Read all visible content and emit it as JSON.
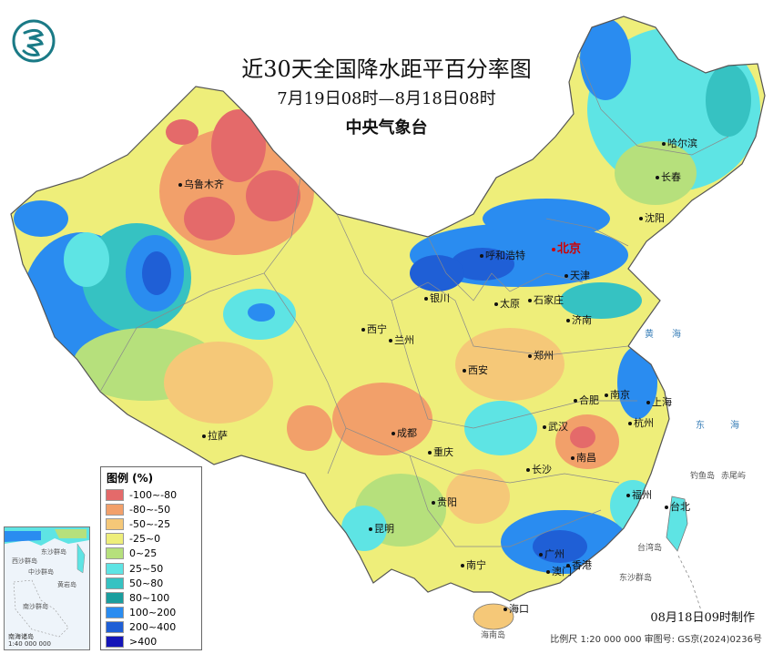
{
  "header": {
    "title": "近30天全国降水距平百分率图",
    "subtitle": "7月19日08时—8月18日08时",
    "agency": "中央气象台"
  },
  "legend": {
    "title": "图例 (%)",
    "items": [
      {
        "label": "-100~-80",
        "color": "#e46a6a"
      },
      {
        "label": "-80~-50",
        "color": "#f2a06a"
      },
      {
        "label": "-50~-25",
        "color": "#f5c878"
      },
      {
        "label": "-25~0",
        "color": "#eeee7a"
      },
      {
        "label": "0~25",
        "color": "#b6e07c"
      },
      {
        "label": "25~50",
        "color": "#5ee4e4"
      },
      {
        "label": "50~80",
        "color": "#36c2c2"
      },
      {
        "label": "80~100",
        "color": "#1a9e9e"
      },
      {
        "label": "100~200",
        "color": "#2a8cf0"
      },
      {
        "label": "200~400",
        "color": "#1f5fd6"
      },
      {
        "label": ">400",
        "color": "#1515b8"
      }
    ]
  },
  "cities": [
    {
      "key": "urumqi",
      "name": "乌鲁木齐"
    },
    {
      "key": "harbin",
      "name": "哈尔滨"
    },
    {
      "key": "changchun",
      "name": "长春"
    },
    {
      "key": "shenyang",
      "name": "沈阳"
    },
    {
      "key": "beijing",
      "name": "北京"
    },
    {
      "key": "hohhot",
      "name": "呼和浩特"
    },
    {
      "key": "tianjin",
      "name": "天津"
    },
    {
      "key": "yinchuan",
      "name": "银川"
    },
    {
      "key": "taiyuan",
      "name": "太原"
    },
    {
      "key": "shijiazhuang",
      "name": "石家庄"
    },
    {
      "key": "jinan",
      "name": "济南"
    },
    {
      "key": "xining",
      "name": "西宁"
    },
    {
      "key": "lanzhou",
      "name": "兰州"
    },
    {
      "key": "zhengzhou",
      "name": "郑州"
    },
    {
      "key": "xian",
      "name": "西安"
    },
    {
      "key": "hefei",
      "name": "合肥"
    },
    {
      "key": "nanjing",
      "name": "南京"
    },
    {
      "key": "shanghai",
      "name": "上海"
    },
    {
      "key": "hangzhou",
      "name": "杭州"
    },
    {
      "key": "lhasa",
      "name": "拉萨"
    },
    {
      "key": "chengdu",
      "name": "成都"
    },
    {
      "key": "wuhan",
      "name": "武汉"
    },
    {
      "key": "chongqing",
      "name": "重庆"
    },
    {
      "key": "nanchang",
      "name": "南昌"
    },
    {
      "key": "changsha",
      "name": "长沙"
    },
    {
      "key": "guiyang",
      "name": "贵阳"
    },
    {
      "key": "fuzhou",
      "name": "福州"
    },
    {
      "key": "taibei",
      "name": "台北"
    },
    {
      "key": "kunming",
      "name": "昆明"
    },
    {
      "key": "guangzhou",
      "name": "广州"
    },
    {
      "key": "nanning",
      "name": "南宁"
    },
    {
      "key": "hongkong",
      "name": "香港"
    },
    {
      "key": "macau",
      "name": "澳门"
    },
    {
      "key": "haikou",
      "name": "海口"
    }
  ],
  "seas": {
    "huanghai": "黄",
    "hai1": "海",
    "donghai": "东",
    "hai2": "海",
    "taiwan_island": "台湾岛",
    "dongsha": "东沙群岛",
    "hainan_island": "海南岛",
    "diaoyu": "钓鱼岛",
    "chiwei": "赤尾屿"
  },
  "inset": {
    "caption_title": "南海诸岛",
    "caption_scale": "1:40 000 000",
    "labels": [
      "东沙群岛",
      "西沙群岛",
      "中沙群岛",
      "南沙群岛",
      "黄岩岛"
    ]
  },
  "footer": {
    "made_time": "08月18日09时制作",
    "note": "比例尺 1:20 000 000 审图号: GS京(2024)0236号"
  }
}
